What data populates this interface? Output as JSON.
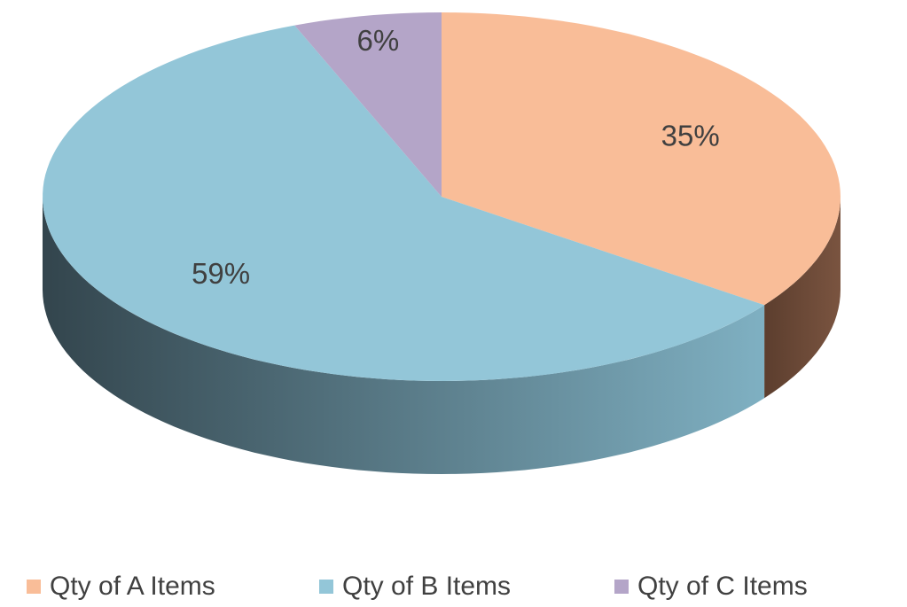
{
  "chart_data": {
    "type": "pie",
    "categories": [
      "Qty of A Items",
      "Qty of B Items",
      "Qty of C Items"
    ],
    "values": [
      35,
      59,
      6
    ],
    "value_labels": [
      "35%",
      "59%",
      "6%"
    ],
    "colors": [
      "#f9bd98",
      "#93c6d8",
      "#b4a5c8"
    ],
    "side_colors": [
      [
        "#7a5440",
        "#5c3e2e"
      ],
      [
        "#7fb0c2",
        "#33454d"
      ],
      [
        "#7d6f90",
        "#5a4f6a"
      ]
    ],
    "legend": "bottom"
  }
}
